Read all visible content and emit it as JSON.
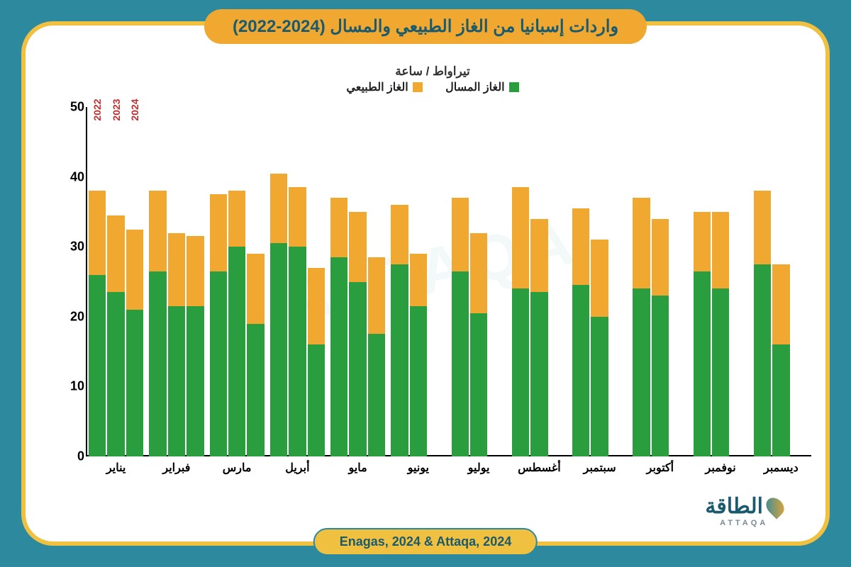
{
  "title": "واردات إسبانيا من الغاز الطبيعي والمسال (2024-2022)",
  "unit_label": "تيراواط / ساعة",
  "legend": {
    "lng": {
      "label": "الغاز المسال",
      "color": "#2a9d3e"
    },
    "natural": {
      "label": "الغاز الطبيعي",
      "color": "#f0a830"
    }
  },
  "source": "Enagas, 2024 & Attaqa, 2024",
  "logo": {
    "ar": "الطاقة",
    "en": "ATTAQA"
  },
  "watermark": "ATTAQA",
  "years": [
    "2022",
    "2023",
    "2024"
  ],
  "year_label_color": "#c03030",
  "chart": {
    "type": "stacked-bar-grouped",
    "ylim": [
      0,
      50
    ],
    "yticks": [
      0,
      10,
      20,
      30,
      40,
      50
    ],
    "background": "#ffffff",
    "grid_color": "#cccccc",
    "axis_color": "#000000",
    "bar_gap": 2,
    "group_gap": 8,
    "tick_fontsize": 18,
    "label_fontsize": 16,
    "months": [
      {
        "label": "يناير",
        "bars": [
          {
            "lng": 26,
            "nat": 12
          },
          {
            "lng": 23.5,
            "nat": 11
          },
          {
            "lng": 21,
            "nat": 11.5
          }
        ]
      },
      {
        "label": "فبراير",
        "bars": [
          {
            "lng": 26.5,
            "nat": 11.5
          },
          {
            "lng": 21.5,
            "nat": 10.5
          },
          {
            "lng": 21.5,
            "nat": 10
          }
        ]
      },
      {
        "label": "مارس",
        "bars": [
          {
            "lng": 26.5,
            "nat": 11
          },
          {
            "lng": 30,
            "nat": 8
          },
          {
            "lng": 19,
            "nat": 10
          }
        ]
      },
      {
        "label": "أبريل",
        "bars": [
          {
            "lng": 30.5,
            "nat": 10
          },
          {
            "lng": 30,
            "nat": 8.5
          },
          {
            "lng": 16,
            "nat": 11
          }
        ]
      },
      {
        "label": "مايو",
        "bars": [
          {
            "lng": 28.5,
            "nat": 8.5
          },
          {
            "lng": 25,
            "nat": 10
          },
          {
            "lng": 17.5,
            "nat": 11
          }
        ]
      },
      {
        "label": "يونيو",
        "bars": [
          {
            "lng": 27.5,
            "nat": 8.5
          },
          {
            "lng": 21.5,
            "nat": 7.5
          },
          {
            "lng": null,
            "nat": null
          }
        ]
      },
      {
        "label": "يوليو",
        "bars": [
          {
            "lng": 26.5,
            "nat": 10.5
          },
          {
            "lng": 20.5,
            "nat": 11.5
          },
          {
            "lng": null,
            "nat": null
          }
        ]
      },
      {
        "label": "أغسطس",
        "bars": [
          {
            "lng": 24,
            "nat": 14.5
          },
          {
            "lng": 23.5,
            "nat": 10.5
          },
          {
            "lng": null,
            "nat": null
          }
        ]
      },
      {
        "label": "سبتمبر",
        "bars": [
          {
            "lng": 24.5,
            "nat": 11
          },
          {
            "lng": 20,
            "nat": 11
          },
          {
            "lng": null,
            "nat": null
          }
        ]
      },
      {
        "label": "أكتوبر",
        "bars": [
          {
            "lng": 24,
            "nat": 13
          },
          {
            "lng": 23,
            "nat": 11
          },
          {
            "lng": null,
            "nat": null
          }
        ]
      },
      {
        "label": "نوفمبر",
        "bars": [
          {
            "lng": 26.5,
            "nat": 8.5
          },
          {
            "lng": 24,
            "nat": 11
          },
          {
            "lng": null,
            "nat": null
          }
        ]
      },
      {
        "label": "ديسمبر",
        "bars": [
          {
            "lng": 27.5,
            "nat": 10.5
          },
          {
            "lng": 16,
            "nat": 11.5
          },
          {
            "lng": null,
            "nat": null
          }
        ]
      }
    ]
  },
  "colors": {
    "page_bg": "#2d8a9e",
    "frame_border": "#f0c040",
    "title_bg": "#f0a830",
    "title_text": "#1a5a6e"
  }
}
